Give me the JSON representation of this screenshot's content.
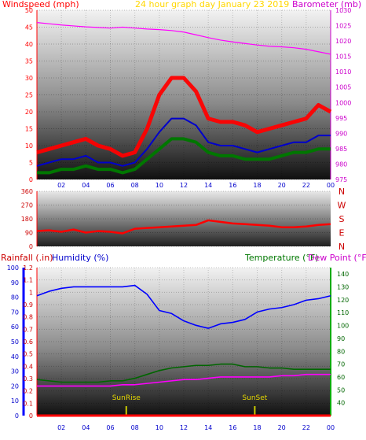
{
  "chart_data": [
    {
      "type": "line",
      "title": "24 hour graph day  January 23 2019",
      "left_axis_label": "Windspeed (mph)",
      "right_axis_label": "Barometer (mb)",
      "left_ylim": [
        0,
        50
      ],
      "right_ylim": [
        975,
        1030
      ],
      "left_ticks": [
        "0",
        "5",
        "10",
        "15",
        "20",
        "25",
        "30",
        "35",
        "40",
        "45",
        "50"
      ],
      "right_ticks": [
        "975",
        "980",
        "985",
        "990",
        "995",
        "1000",
        "1005",
        "1010",
        "1015",
        "1020",
        "1025",
        "1030"
      ],
      "x_ticks": [
        "02",
        "04",
        "06",
        "08",
        "10",
        "12",
        "14",
        "16",
        "18",
        "20",
        "22",
        "00"
      ],
      "series": [
        {
          "color": "#ff00ff",
          "x": [
            0,
            1,
            2,
            3,
            4,
            5,
            6,
            7,
            8,
            9,
            10,
            11,
            12,
            13,
            14,
            15,
            16,
            17,
            18,
            19,
            20,
            21,
            22,
            23,
            24
          ],
          "values": [
            1026,
            1025.6,
            1025.2,
            1024.9,
            1024.6,
            1024.4,
            1024.2,
            1024.5,
            1024.2,
            1023.9,
            1023.7,
            1023.4,
            1022.9,
            1022.0,
            1021.1,
            1020.3,
            1019.7,
            1019.2,
            1018.7,
            1018.3,
            1018.1,
            1017.8,
            1017.3,
            1016.5,
            1015.7
          ]
        },
        {
          "color": "#ff0000",
          "x": [
            0,
            1,
            2,
            3,
            4,
            5,
            6,
            7,
            8,
            9,
            10,
            11,
            12,
            13,
            14,
            15,
            16,
            17,
            18,
            19,
            20,
            21,
            22,
            23,
            24
          ],
          "values": [
            8,
            9,
            10,
            11,
            12,
            10,
            9,
            7,
            8,
            15,
            25,
            30,
            30,
            26,
            18,
            17,
            17,
            16,
            14,
            15,
            16,
            17,
            18,
            22,
            20
          ]
        },
        {
          "color": "#0000cc",
          "x": [
            0,
            1,
            2,
            3,
            4,
            5,
            6,
            7,
            8,
            9,
            10,
            11,
            12,
            13,
            14,
            15,
            16,
            17,
            18,
            19,
            20,
            21,
            22,
            23,
            24
          ],
          "values": [
            4,
            5,
            6,
            6,
            7,
            5,
            5,
            4,
            5,
            9,
            14,
            18,
            18,
            16,
            11,
            10,
            10,
            9,
            8,
            9,
            10,
            11,
            11,
            13,
            13
          ]
        },
        {
          "color": "#007700",
          "x": [
            0,
            1,
            2,
            3,
            4,
            5,
            6,
            7,
            8,
            9,
            10,
            11,
            12,
            13,
            14,
            15,
            16,
            17,
            18,
            19,
            20,
            21,
            22,
            23,
            24
          ],
          "values": [
            2,
            2,
            3,
            3,
            4,
            3,
            3,
            2,
            3,
            6,
            9,
            12,
            12,
            11,
            8,
            7,
            7,
            6,
            6,
            6,
            7,
            8,
            8,
            9,
            9
          ]
        }
      ]
    },
    {
      "type": "line",
      "ylim": [
        0,
        360
      ],
      "left_ticks": [
        "0",
        "90",
        "180",
        "270",
        "360"
      ],
      "right_labels": [
        "N",
        "W",
        "S",
        "E",
        "N"
      ],
      "series": [
        {
          "color": "#ff0000",
          "x": [
            0,
            1,
            2,
            3,
            4,
            5,
            6,
            7,
            8,
            9,
            10,
            11,
            12,
            13,
            14,
            15,
            16,
            17,
            18,
            19,
            20,
            21,
            22,
            23,
            24
          ],
          "values": [
            100,
            105,
            95,
            110,
            90,
            100,
            95,
            85,
            115,
            120,
            125,
            130,
            135,
            140,
            170,
            160,
            150,
            145,
            140,
            135,
            125,
            125,
            130,
            140,
            145
          ]
        }
      ]
    },
    {
      "type": "line",
      "left_axis_label_1": "Rainfall (.in)",
      "left_axis_label_2": "Humidity (%)",
      "right_axis_label_1": "Temperature (°F)",
      "right_axis_label_2": "Dew Point (°F)",
      "left_ylim": [
        0,
        1.2
      ],
      "humidity_ylim": [
        0,
        100
      ],
      "right_ylim": [
        30,
        145
      ],
      "rain_ticks": [
        "0",
        "0.1",
        "0.2",
        "0.3",
        "0.4",
        "0.5",
        "0.6",
        "0.7",
        "0.8",
        "0.9",
        "1",
        "1.1",
        "1.2"
      ],
      "humidity_ticks": [
        "0",
        "10",
        "20",
        "30",
        "40",
        "50",
        "60",
        "70",
        "80",
        "90",
        "100"
      ],
      "right_ticks": [
        "40",
        "50",
        "60",
        "70",
        "80",
        "90",
        "100",
        "110",
        "120",
        "130",
        "140"
      ],
      "x_ticks": [
        "02",
        "04",
        "06",
        "08",
        "10",
        "12",
        "14",
        "16",
        "18",
        "20",
        "22",
        "00"
      ],
      "annotations": [
        {
          "label": "SunRise",
          "x": 7.3
        },
        {
          "label": "SunSet",
          "x": 17.8
        }
      ],
      "series": [
        {
          "color": "#0000ff",
          "x": [
            0,
            1,
            2,
            3,
            4,
            5,
            6,
            7,
            8,
            9,
            10,
            11,
            12,
            13,
            14,
            15,
            16,
            17,
            18,
            19,
            20,
            21,
            22,
            23,
            24
          ],
          "values": [
            81,
            84,
            86,
            87,
            87,
            87,
            87,
            87,
            88,
            82,
            71,
            69,
            64,
            61,
            59,
            62,
            63,
            65,
            70,
            72,
            73,
            75,
            78,
            79,
            81
          ]
        },
        {
          "color": "#006600",
          "x": [
            0,
            1,
            2,
            3,
            4,
            5,
            6,
            7,
            8,
            9,
            10,
            11,
            12,
            13,
            14,
            15,
            16,
            17,
            18,
            19,
            20,
            21,
            22,
            23,
            24
          ],
          "values": [
            58,
            57,
            56,
            56,
            56,
            56,
            57,
            57,
            59,
            62,
            65,
            67,
            68,
            69,
            69,
            70,
            70,
            68,
            68,
            67,
            67,
            66,
            66,
            66,
            66
          ]
        },
        {
          "color": "#ff00ff",
          "x": [
            0,
            1,
            2,
            3,
            4,
            5,
            6,
            7,
            8,
            9,
            10,
            11,
            12,
            13,
            14,
            15,
            16,
            17,
            18,
            19,
            20,
            21,
            22,
            23,
            24
          ],
          "values": [
            53,
            53,
            53,
            53,
            53,
            53,
            53,
            54,
            54,
            55,
            56,
            57,
            58,
            58,
            59,
            60,
            60,
            60,
            60,
            60,
            61,
            61,
            62,
            62,
            62
          ]
        },
        {
          "color": "#ff0000",
          "x": [
            0,
            24
          ],
          "values": [
            0,
            0
          ]
        }
      ]
    }
  ]
}
